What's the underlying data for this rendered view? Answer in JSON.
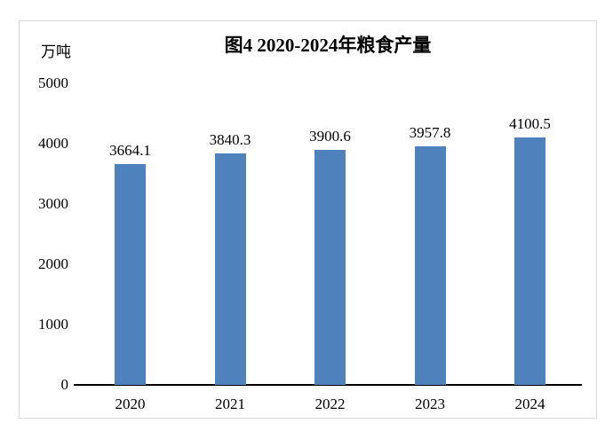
{
  "chart_data": {
    "type": "bar",
    "title": "图4 2020-2024年粮食产量",
    "unit": "万吨",
    "categories": [
      "2020",
      "2021",
      "2022",
      "2023",
      "2024"
    ],
    "values": [
      3664.1,
      3840.3,
      3900.6,
      3957.8,
      4100.5
    ],
    "xlabel": "",
    "ylabel": "万吨",
    "ylim": [
      0,
      5000
    ],
    "yticks": [
      0,
      1000,
      2000,
      3000,
      4000,
      5000
    ],
    "grid": false,
    "legend": false,
    "value_labels": true,
    "colors": {
      "bar": "#4f81bd",
      "axis": "#000000",
      "frame_border": "#d9d9d9",
      "text": "#000000"
    }
  }
}
